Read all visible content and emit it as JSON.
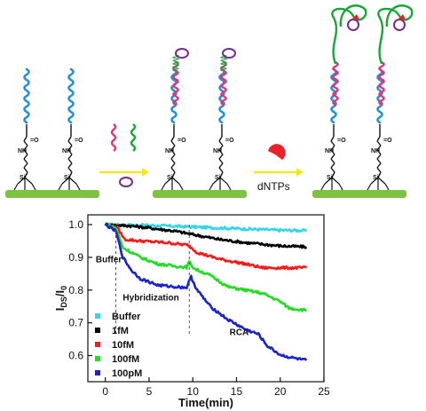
{
  "scheme": {
    "reagent_label": "dNTPs",
    "colors": {
      "substrate": "#7dc242",
      "probe": "#2a8fd0",
      "target": "#e0357a",
      "amplicon": "#1aa53a",
      "arrow": "#f5e52a",
      "enzyme": "#e8212b",
      "circle": "#7a2a8a"
    },
    "linker_text": {
      "oxygen": "=O",
      "amine": "NH",
      "silicon": "Si",
      "oxygen_atom": "O"
    }
  },
  "chart_data": {
    "type": "line",
    "title": "",
    "xlabel": "Time(min)",
    "ylabel_main": "I",
    "ylabel_sub1": "DS",
    "ylabel_sep": "/I",
    "ylabel_sub2": "0",
    "xlim": [
      -2,
      25
    ],
    "ylim": [
      0.52,
      1.03
    ],
    "xticks": [
      0,
      5,
      10,
      15,
      20,
      25
    ],
    "yticks": [
      0.6,
      0.7,
      0.8,
      0.9,
      1.0
    ],
    "xtick_labels": [
      "0",
      "5",
      "10",
      "15",
      "20",
      "25"
    ],
    "ytick_labels": [
      "0.6",
      "0.7",
      "0.8",
      "0.9",
      "1.0"
    ],
    "legend_position": "bottom-left",
    "annotations": [
      {
        "text": "Buffer",
        "x": -1.1,
        "y": 0.885
      },
      {
        "text": "Hybridization",
        "x": 2.0,
        "y": 0.768
      },
      {
        "text": "RCA",
        "x": 14.2,
        "y": 0.662
      }
    ],
    "markers": [
      {
        "x": 1.2
      },
      {
        "x": 9.6
      }
    ],
    "series": [
      {
        "name": "Buffer",
        "color": "#33d6e8",
        "points": [
          [
            0,
            1.0
          ],
          [
            5,
            0.998
          ],
          [
            10,
            0.993
          ],
          [
            15,
            0.988
          ],
          [
            20,
            0.983
          ],
          [
            23,
            0.982
          ]
        ]
      },
      {
        "name": "1fM",
        "color": "#000000",
        "points": [
          [
            0,
            1.0
          ],
          [
            3,
            0.996
          ],
          [
            5,
            0.99
          ],
          [
            8,
            0.98
          ],
          [
            10,
            0.97
          ],
          [
            13,
            0.955
          ],
          [
            16,
            0.945
          ],
          [
            20,
            0.935
          ],
          [
            23,
            0.932
          ]
        ]
      },
      {
        "name": "10fM",
        "color": "#ff1a1a",
        "points": [
          [
            0,
            1.0
          ],
          [
            1.4,
            0.99
          ],
          [
            2.2,
            0.955
          ],
          [
            4,
            0.95
          ],
          [
            7,
            0.945
          ],
          [
            9.5,
            0.937
          ],
          [
            10.5,
            0.915
          ],
          [
            13,
            0.895
          ],
          [
            16,
            0.88
          ],
          [
            18,
            0.868
          ],
          [
            23,
            0.868
          ]
        ]
      },
      {
        "name": "100fM",
        "color": "#22dd22",
        "points": [
          [
            0,
            1.0
          ],
          [
            1.2,
            0.99
          ],
          [
            2,
            0.93
          ],
          [
            4,
            0.9
          ],
          [
            6,
            0.88
          ],
          [
            8,
            0.873
          ],
          [
            9.3,
            0.87
          ],
          [
            9.6,
            0.885
          ],
          [
            10.2,
            0.865
          ],
          [
            12,
            0.845
          ],
          [
            14,
            0.81
          ],
          [
            16,
            0.8
          ],
          [
            18,
            0.79
          ],
          [
            20,
            0.765
          ],
          [
            21,
            0.745
          ],
          [
            23,
            0.738
          ]
        ]
      },
      {
        "name": "100pM",
        "color": "#1a22cc",
        "points": [
          [
            0,
            1.0
          ],
          [
            1.2,
            0.98
          ],
          [
            2,
            0.9
          ],
          [
            3,
            0.86
          ],
          [
            4,
            0.835
          ],
          [
            6,
            0.815
          ],
          [
            8,
            0.81
          ],
          [
            9.3,
            0.808
          ],
          [
            9.8,
            0.84
          ],
          [
            10.5,
            0.8
          ],
          [
            12,
            0.75
          ],
          [
            14,
            0.71
          ],
          [
            16,
            0.68
          ],
          [
            17.5,
            0.665
          ],
          [
            18.5,
            0.63
          ],
          [
            20,
            0.602
          ],
          [
            21,
            0.595
          ],
          [
            23,
            0.585
          ]
        ]
      }
    ]
  }
}
